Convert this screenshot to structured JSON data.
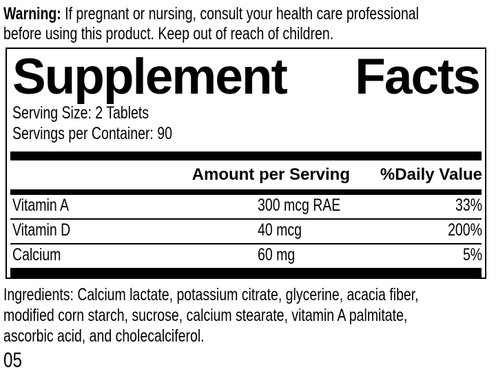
{
  "page": {
    "background_color": "#ffffff",
    "text_color": "#000000"
  },
  "warning": {
    "label": "Warning:",
    "line1_rest": " If pregnant or nursing, consult your health care professional",
    "line2": "before using this product. Keep out of reach of children."
  },
  "panel": {
    "title_left": "Supplement",
    "title_right": "Facts",
    "serving_size": "Serving Size: 2 Tablets",
    "servings_per_container": "Servings per Container: 90",
    "columns": {
      "amount": "Amount per Serving",
      "daily_value": "%Daily Value"
    },
    "rows": [
      {
        "name": "Vitamin A",
        "amount": "300 mcg RAE",
        "daily_value": "33%"
      },
      {
        "name": "Vitamin D",
        "amount": "40 mcg",
        "daily_value": "200%"
      },
      {
        "name": "Calcium",
        "amount": "60 mg",
        "daily_value": "5%"
      }
    ]
  },
  "ingredients": {
    "lines": [
      "Ingredients: Calcium lactate, potassium citrate, glycerine, acacia fiber,",
      "modified corn starch, sucrose, calcium stearate, vitamin A palmitate,",
      "ascorbic acid, and cholecalciferol."
    ]
  },
  "footer": {
    "code": "05"
  }
}
